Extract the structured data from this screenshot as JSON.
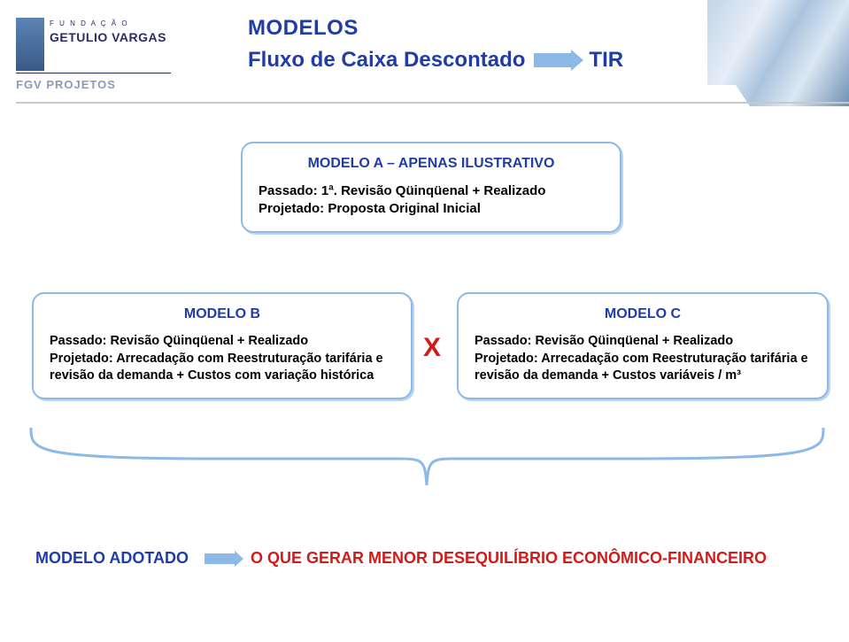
{
  "logo": {
    "top_label": "F U N D A Ç Ã O",
    "name": "GETULIO VARGAS",
    "sub": "FGV PROJETOS"
  },
  "title": {
    "line1": "MODELOS",
    "line2_left": "Fluxo de Caixa Descontado",
    "line2_right": "TIR"
  },
  "cardA": {
    "title": "MODELO A – APENAS ILUSTRATIVO",
    "body": "Passado: 1ª. Revisão Qüinqüenal + Realizado\nProjetado: Proposta Original Inicial"
  },
  "cardB": {
    "title": "MODELO B",
    "body": "Passado: Revisão Qüinqüenal + Realizado\nProjetado: Arrecadação com Reestruturação tarifária e revisão da demanda + Custos com variação histórica"
  },
  "cardC": {
    "title": "MODELO C",
    "body": "Passado: Revisão Qüinqüenal + Realizado\nProjetado: Arrecadação com Reestruturação tarifária e revisão da demanda + Custos variáveis / m³"
  },
  "x_mark": "X",
  "bottom": {
    "label": "MODELO ADOTADO",
    "text": "O QUE GERAR  MENOR  DESEQUILÍBRIO ECONÔMICO-FINANCEIRO"
  },
  "colors": {
    "brand_blue": "#203ca6",
    "light_blue": "#8db9e8",
    "red": "#d11a1a",
    "rule": "#c9c9c9"
  }
}
